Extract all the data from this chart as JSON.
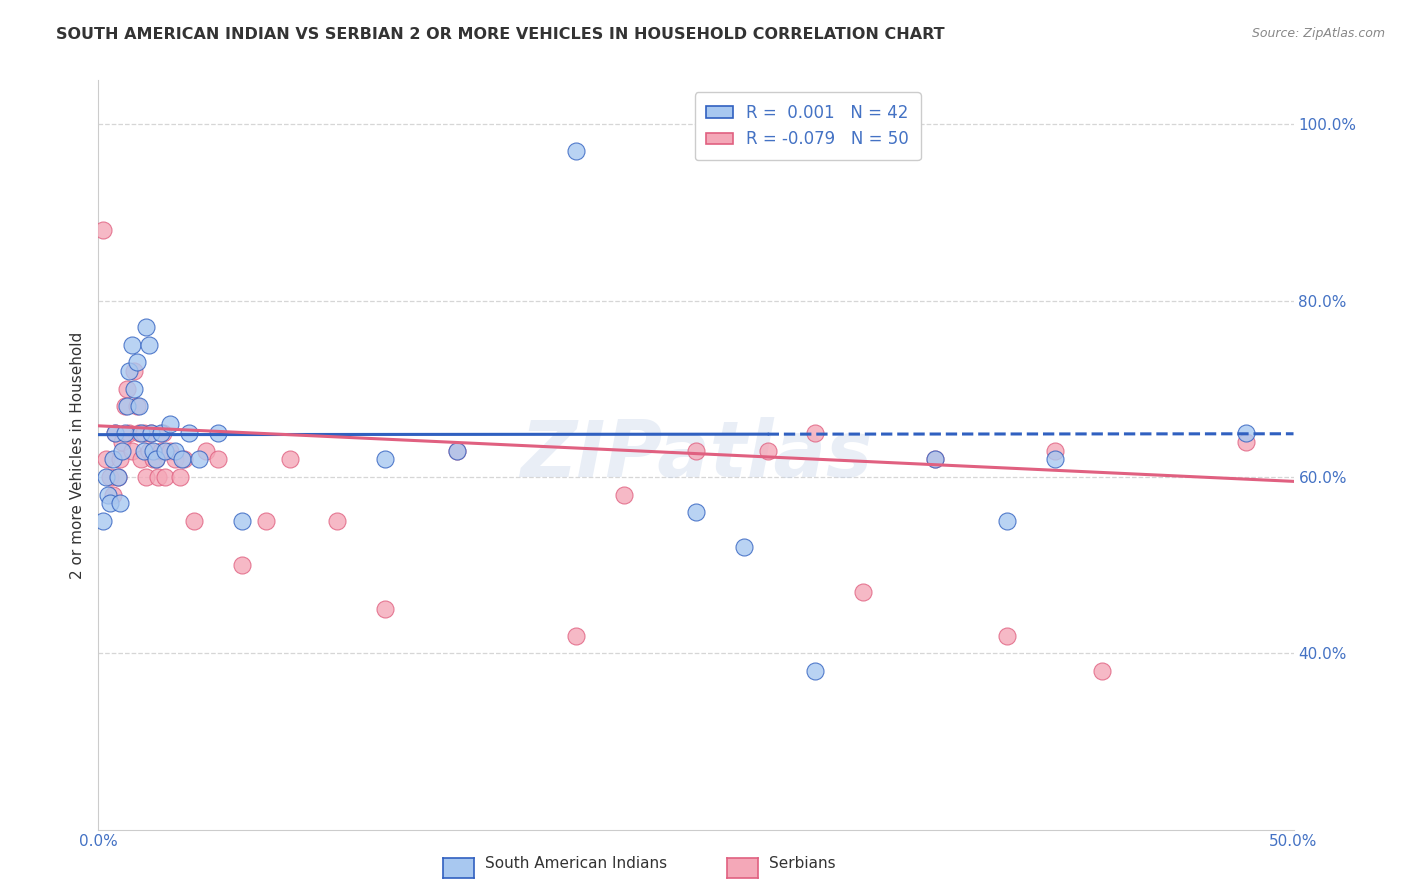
{
  "title": "SOUTH AMERICAN INDIAN VS SERBIAN 2 OR MORE VEHICLES IN HOUSEHOLD CORRELATION CHART",
  "source": "Source: ZipAtlas.com",
  "ylabel": "2 or more Vehicles in Household",
  "xmin": 0.0,
  "xmax": 0.5,
  "ymin": 0.2,
  "ymax": 1.05,
  "xticks": [
    0.0,
    0.05,
    0.1,
    0.15,
    0.2,
    0.25,
    0.3,
    0.35,
    0.4,
    0.45,
    0.5
  ],
  "xtick_labels": [
    "0.0%",
    "",
    "",
    "",
    "",
    "",
    "",
    "",
    "",
    "",
    "50.0%"
  ],
  "yticks": [
    0.4,
    0.6,
    0.8,
    1.0
  ],
  "ytick_labels": [
    "40.0%",
    "60.0%",
    "80.0%",
    "100.0%"
  ],
  "legend_blue_label": "R =  0.001   N = 42",
  "legend_pink_label": "R = -0.079   N = 50",
  "blue_color": "#A8C8F0",
  "pink_color": "#F4A8B8",
  "blue_line_color": "#3060C0",
  "pink_line_color": "#E06080",
  "watermark": "ZIPatlas",
  "blue_x": [
    0.002,
    0.003,
    0.004,
    0.005,
    0.006,
    0.007,
    0.008,
    0.009,
    0.01,
    0.011,
    0.012,
    0.013,
    0.014,
    0.015,
    0.016,
    0.017,
    0.018,
    0.019,
    0.02,
    0.021,
    0.022,
    0.023,
    0.024,
    0.026,
    0.028,
    0.03,
    0.032,
    0.035,
    0.038,
    0.042,
    0.05,
    0.06,
    0.12,
    0.15,
    0.2,
    0.25,
    0.27,
    0.3,
    0.35,
    0.38,
    0.4,
    0.48
  ],
  "blue_y": [
    0.55,
    0.6,
    0.58,
    0.57,
    0.62,
    0.65,
    0.6,
    0.57,
    0.63,
    0.65,
    0.68,
    0.72,
    0.75,
    0.7,
    0.73,
    0.68,
    0.65,
    0.63,
    0.77,
    0.75,
    0.65,
    0.63,
    0.62,
    0.65,
    0.63,
    0.66,
    0.63,
    0.62,
    0.65,
    0.62,
    0.65,
    0.55,
    0.62,
    0.63,
    0.97,
    0.56,
    0.52,
    0.38,
    0.62,
    0.55,
    0.62,
    0.65
  ],
  "pink_x": [
    0.002,
    0.003,
    0.005,
    0.006,
    0.007,
    0.008,
    0.009,
    0.01,
    0.011,
    0.012,
    0.013,
    0.014,
    0.015,
    0.016,
    0.017,
    0.018,
    0.019,
    0.02,
    0.021,
    0.022,
    0.023,
    0.024,
    0.025,
    0.026,
    0.027,
    0.028,
    0.03,
    0.032,
    0.034,
    0.036,
    0.04,
    0.045,
    0.05,
    0.06,
    0.07,
    0.08,
    0.1,
    0.12,
    0.15,
    0.2,
    0.22,
    0.25,
    0.28,
    0.3,
    0.32,
    0.35,
    0.38,
    0.4,
    0.42,
    0.48
  ],
  "pink_y": [
    0.88,
    0.62,
    0.6,
    0.58,
    0.65,
    0.6,
    0.62,
    0.64,
    0.68,
    0.7,
    0.65,
    0.63,
    0.72,
    0.68,
    0.65,
    0.62,
    0.65,
    0.6,
    0.63,
    0.65,
    0.62,
    0.62,
    0.6,
    0.63,
    0.65,
    0.6,
    0.63,
    0.62,
    0.6,
    0.62,
    0.55,
    0.63,
    0.62,
    0.5,
    0.55,
    0.62,
    0.55,
    0.45,
    0.63,
    0.42,
    0.58,
    0.63,
    0.63,
    0.65,
    0.47,
    0.62,
    0.42,
    0.63,
    0.38,
    0.64
  ],
  "blue_line_x0": 0.0,
  "blue_line_x1": 0.5,
  "blue_line_y0": 0.648,
  "blue_line_y1": 0.649,
  "blue_line_solid_end": 0.28,
  "pink_line_x0": 0.0,
  "pink_line_x1": 0.5,
  "pink_line_y0": 0.658,
  "pink_line_y1": 0.595
}
